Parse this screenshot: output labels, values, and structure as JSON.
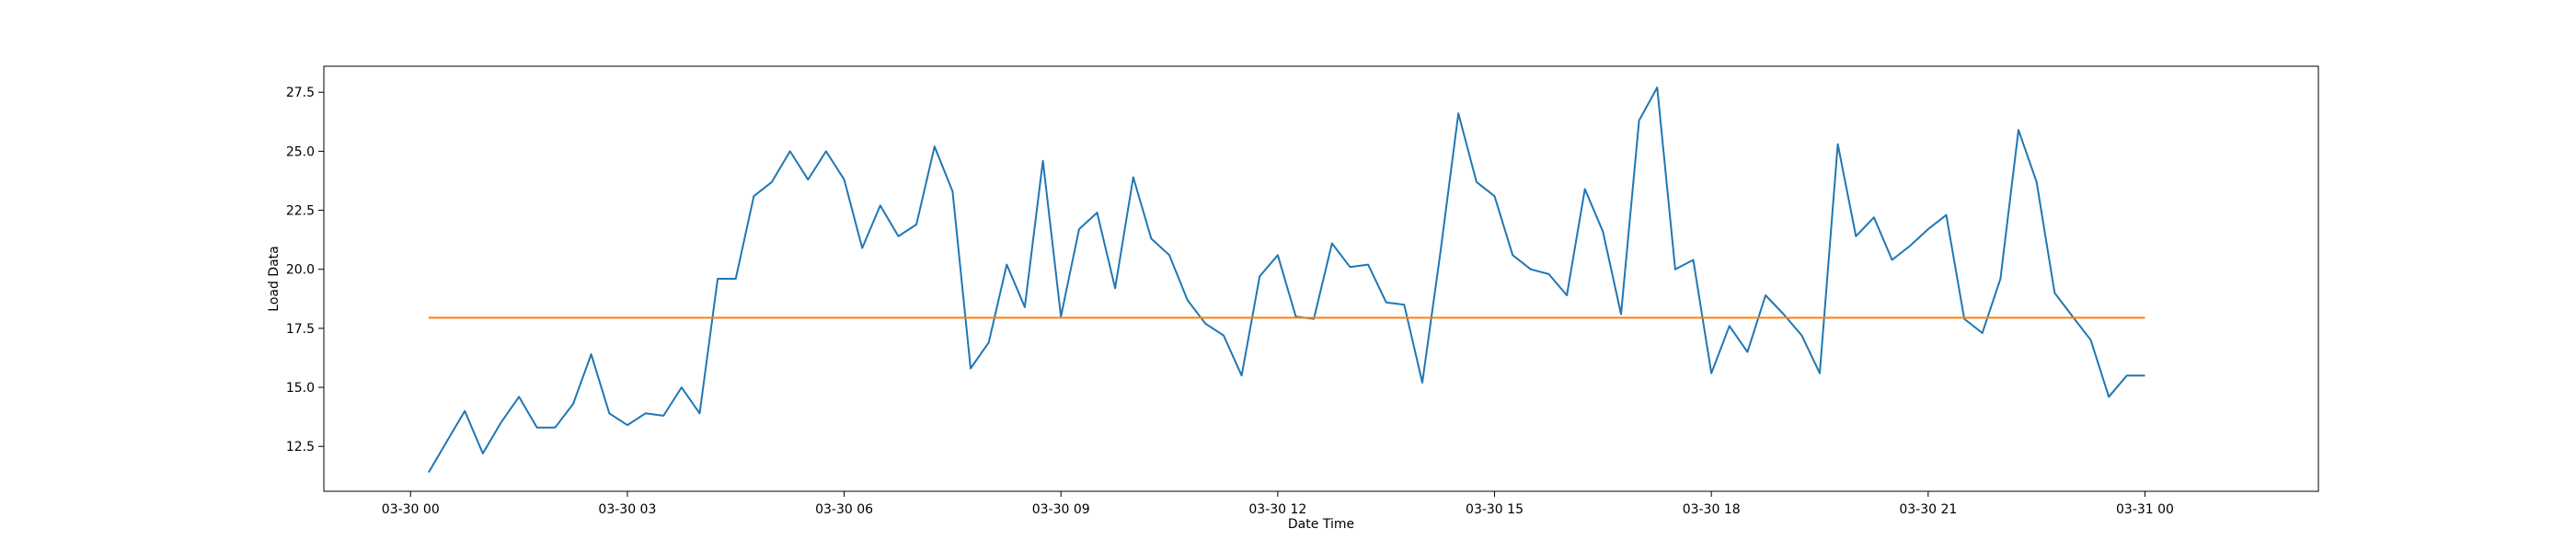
{
  "chart_data": {
    "type": "line",
    "title": "",
    "xlabel": "Date Time",
    "ylabel": "Load Data",
    "x_range": [
      "2024-03-29T22:48",
      "2024-03-31T02:24"
    ],
    "ylim": [
      10.6,
      28.6
    ],
    "grid": false,
    "legend": "none",
    "x_ticks": [
      {
        "x": "2024-03-30T00:00",
        "label": "03-30 00"
      },
      {
        "x": "2024-03-30T03:00",
        "label": "03-30 03"
      },
      {
        "x": "2024-03-30T06:00",
        "label": "03-30 06"
      },
      {
        "x": "2024-03-30T09:00",
        "label": "03-30 09"
      },
      {
        "x": "2024-03-30T12:00",
        "label": "03-30 12"
      },
      {
        "x": "2024-03-30T15:00",
        "label": "03-30 15"
      },
      {
        "x": "2024-03-30T18:00",
        "label": "03-30 18"
      },
      {
        "x": "2024-03-30T21:00",
        "label": "03-30 21"
      },
      {
        "x": "2024-03-31T00:00",
        "label": "03-31 00"
      }
    ],
    "y_ticks": [
      {
        "y": 12.5,
        "label": "12.5"
      },
      {
        "y": 15.0,
        "label": "15.0"
      },
      {
        "y": 17.5,
        "label": "17.5"
      },
      {
        "y": 20.0,
        "label": "20.0"
      },
      {
        "y": 22.5,
        "label": "22.5"
      },
      {
        "y": 25.0,
        "label": "25.0"
      },
      {
        "y": 27.5,
        "label": "27.5"
      }
    ],
    "series": [
      {
        "color": "#1f77b4",
        "x": [
          "2024-03-30T00:15",
          "2024-03-30T00:30",
          "2024-03-30T00:45",
          "2024-03-30T01:00",
          "2024-03-30T01:15",
          "2024-03-30T01:30",
          "2024-03-30T01:45",
          "2024-03-30T02:00",
          "2024-03-30T02:15",
          "2024-03-30T02:30",
          "2024-03-30T02:45",
          "2024-03-30T03:00",
          "2024-03-30T03:15",
          "2024-03-30T03:30",
          "2024-03-30T03:45",
          "2024-03-30T04:00",
          "2024-03-30T04:15",
          "2024-03-30T04:30",
          "2024-03-30T04:45",
          "2024-03-30T05:00",
          "2024-03-30T05:15",
          "2024-03-30T05:30",
          "2024-03-30T05:45",
          "2024-03-30T06:00",
          "2024-03-30T06:15",
          "2024-03-30T06:30",
          "2024-03-30T06:45",
          "2024-03-30T07:00",
          "2024-03-30T07:15",
          "2024-03-30T07:30",
          "2024-03-30T07:45",
          "2024-03-30T08:00",
          "2024-03-30T08:15",
          "2024-03-30T08:30",
          "2024-03-30T08:45",
          "2024-03-30T09:00",
          "2024-03-30T09:15",
          "2024-03-30T09:30",
          "2024-03-30T09:45",
          "2024-03-30T10:00",
          "2024-03-30T10:15",
          "2024-03-30T10:30",
          "2024-03-30T10:45",
          "2024-03-30T11:00",
          "2024-03-30T11:15",
          "2024-03-30T11:30",
          "2024-03-30T11:45",
          "2024-03-30T12:00",
          "2024-03-30T12:15",
          "2024-03-30T12:30",
          "2024-03-30T12:45",
          "2024-03-30T13:00",
          "2024-03-30T13:15",
          "2024-03-30T13:30",
          "2024-03-30T13:45",
          "2024-03-30T14:00",
          "2024-03-30T14:15",
          "2024-03-30T14:30",
          "2024-03-30T14:45",
          "2024-03-30T15:00",
          "2024-03-30T15:15",
          "2024-03-30T15:30",
          "2024-03-30T15:45",
          "2024-03-30T16:00",
          "2024-03-30T16:15",
          "2024-03-30T16:30",
          "2024-03-30T16:45",
          "2024-03-30T17:00",
          "2024-03-30T17:15",
          "2024-03-30T17:30",
          "2024-03-30T17:45",
          "2024-03-30T18:00",
          "2024-03-30T18:15",
          "2024-03-30T18:30",
          "2024-03-30T18:45",
          "2024-03-30T19:00",
          "2024-03-30T19:15",
          "2024-03-30T19:30",
          "2024-03-30T19:45",
          "2024-03-30T20:00",
          "2024-03-30T20:15",
          "2024-03-30T20:30",
          "2024-03-30T20:45",
          "2024-03-30T21:00",
          "2024-03-30T21:15",
          "2024-03-30T21:30",
          "2024-03-30T21:45",
          "2024-03-30T22:00",
          "2024-03-30T22:15",
          "2024-03-30T22:30",
          "2024-03-30T22:45",
          "2024-03-30T23:00",
          "2024-03-30T23:15",
          "2024-03-30T23:30",
          "2024-03-30T23:45",
          "2024-03-31T00:00"
        ],
        "y": [
          11.4,
          12.7,
          14.0,
          12.2,
          13.5,
          14.6,
          13.3,
          13.3,
          14.3,
          16.4,
          13.9,
          13.4,
          13.9,
          13.8,
          15.0,
          13.9,
          19.6,
          19.6,
          23.1,
          23.7,
          25.0,
          23.8,
          25.0,
          23.8,
          20.9,
          22.7,
          21.4,
          21.9,
          25.2,
          23.3,
          15.8,
          16.9,
          20.2,
          18.4,
          24.6,
          18.0,
          21.7,
          22.4,
          19.2,
          23.9,
          21.3,
          20.6,
          18.7,
          17.7,
          17.2,
          15.5,
          19.7,
          20.6,
          18.0,
          17.9,
          21.1,
          20.1,
          20.2,
          18.6,
          18.5,
          15.2,
          20.7,
          26.6,
          23.7,
          23.1,
          20.6,
          20.0,
          19.8,
          18.9,
          23.4,
          21.6,
          18.1,
          26.3,
          27.7,
          20.0,
          20.4,
          15.6,
          17.6,
          16.5,
          18.9,
          18.1,
          17.2,
          15.6,
          25.3,
          21.4,
          22.2,
          20.4,
          21.0,
          21.7,
          22.3,
          17.9,
          17.3,
          19.6,
          25.9,
          23.7,
          19.0,
          18.0,
          17.0,
          14.6,
          15.5,
          15.5
        ]
      },
      {
        "color": "#ff7f0e",
        "x": [
          "2024-03-30T00:15",
          "2024-03-31T00:00"
        ],
        "y": [
          17.95,
          17.95
        ]
      }
    ]
  }
}
